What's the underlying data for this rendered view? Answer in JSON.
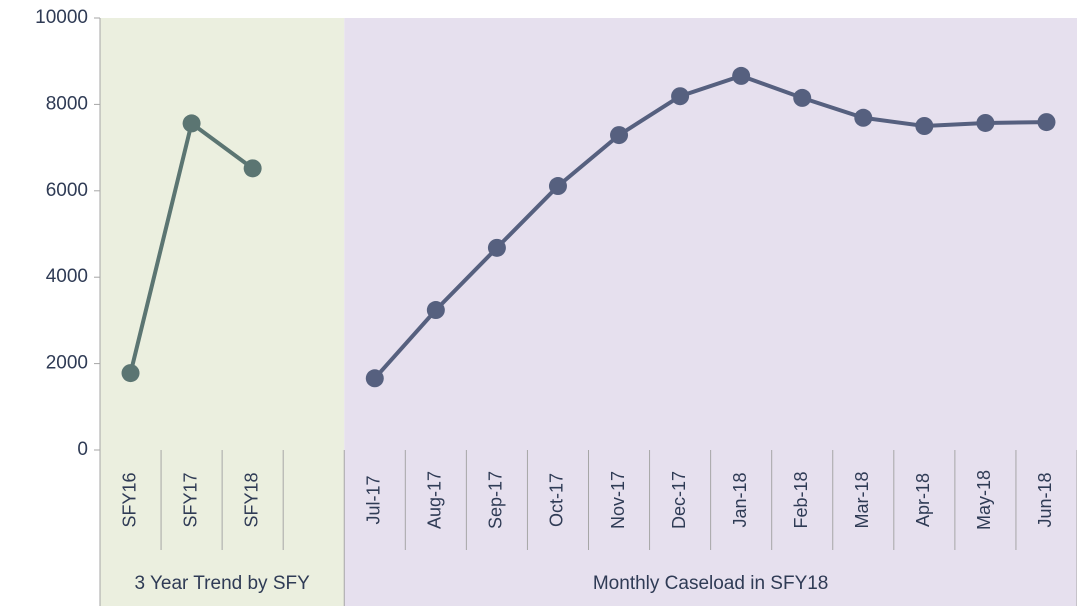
{
  "chart_data": {
    "type": "line",
    "categories": [
      "SFY16",
      "SFY17",
      "SFY18",
      null,
      "Jul-17",
      "Aug-17",
      "Sep-17",
      "Oct-17",
      "Nov-17",
      "Dec-17",
      "Jan-18",
      "Feb-18",
      "Mar-18",
      "Apr-18",
      "May-18",
      "Jun-18"
    ],
    "series": [
      {
        "name": "3 Year Trend by SFY",
        "color": "#5b7572",
        "background": "#ebefdf",
        "values": [
          1780,
          7560,
          6520,
          null,
          null,
          null,
          null,
          null,
          null,
          null,
          null,
          null,
          null,
          null,
          null,
          null
        ]
      },
      {
        "name": "Monthly Caseload in SFY18",
        "color": "#56607f",
        "background": "#e6e0ee",
        "values": [
          null,
          null,
          null,
          null,
          1660,
          3240,
          4680,
          6110,
          7290,
          8190,
          8660,
          8150,
          7690,
          7500,
          7570,
          7590
        ]
      }
    ],
    "ylim": [
      0,
      10000
    ],
    "yticks": [
      0,
      2000,
      4000,
      6000,
      8000,
      10000
    ],
    "grid": false
  }
}
